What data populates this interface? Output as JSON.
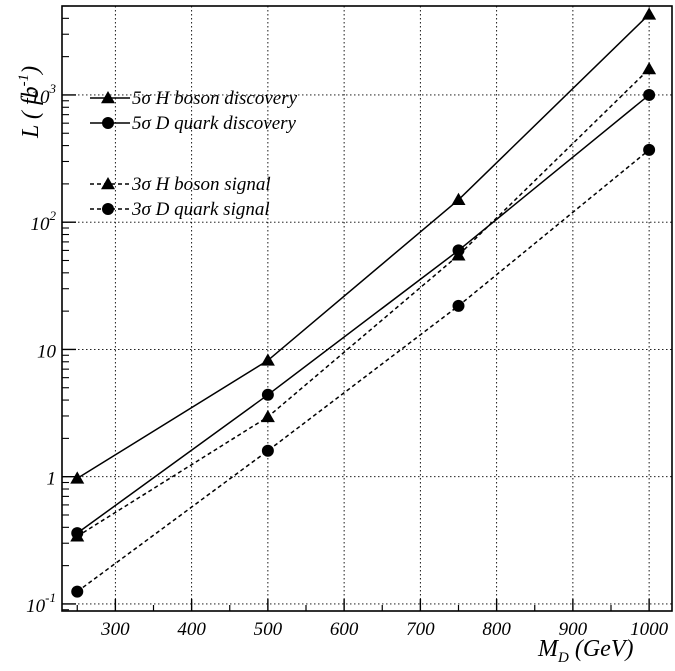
{
  "chart_data": {
    "type": "line",
    "x_scale": "linear",
    "y_scale": "log",
    "xlim": [
      230,
      1030
    ],
    "ylim": [
      0.088,
      5000
    ],
    "grid": true,
    "legend_position": "top-left",
    "x_ticks": [
      300,
      400,
      500,
      600,
      700,
      800,
      900,
      1000
    ],
    "x_tick_labels": [
      "300",
      "400",
      "500",
      "600",
      "700",
      "800",
      "900",
      "1000"
    ],
    "y_ticks": [
      0.1,
      1,
      10,
      100,
      1000
    ],
    "y_tick_labels": [
      {
        "base": "10",
        "exp": "-1"
      },
      {
        "base": "1",
        "exp": ""
      },
      {
        "base": "10",
        "exp": ""
      },
      {
        "base": "10",
        "exp": "2"
      },
      {
        "base": "10",
        "exp": "3"
      }
    ],
    "xlabel": {
      "main": "M",
      "sub": "D",
      "rest": " (GeV)"
    },
    "ylabel": {
      "main": "L ( fb",
      "sup": "-1",
      "rest": ")"
    },
    "series": [
      {
        "name": "5σ H boson discovery",
        "marker": "triangle",
        "line": "solid",
        "x": [
          250,
          500,
          750,
          1000
        ],
        "y": [
          0.97,
          8.2,
          150,
          4300
        ]
      },
      {
        "name": "5σ D quark discovery",
        "marker": "circle",
        "line": "solid",
        "x": [
          250,
          500,
          750,
          1000
        ],
        "y": [
          0.36,
          4.4,
          60,
          1000
        ]
      },
      {
        "name": "3σ H boson signal",
        "marker": "triangle",
        "line": "dashed",
        "x": [
          250,
          500,
          750,
          1000
        ],
        "y": [
          0.34,
          2.95,
          55,
          1600
        ]
      },
      {
        "name": "3σ D quark signal",
        "marker": "circle",
        "line": "dashed",
        "x": [
          250,
          500,
          750,
          1000
        ],
        "y": [
          0.125,
          1.6,
          22,
          370
        ]
      }
    ]
  }
}
